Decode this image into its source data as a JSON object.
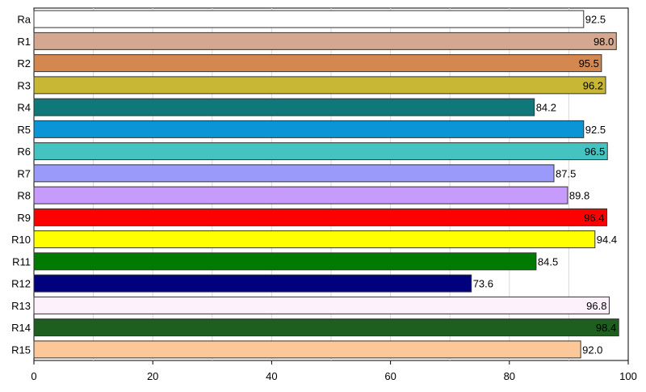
{
  "chart_data": {
    "type": "bar",
    "orientation": "horizontal",
    "categories": [
      "Ra",
      "R1",
      "R2",
      "R3",
      "R4",
      "R5",
      "R6",
      "R7",
      "R8",
      "R9",
      "R10",
      "R11",
      "R12",
      "R13",
      "R14",
      "R15"
    ],
    "values": [
      92.5,
      98.0,
      95.5,
      96.2,
      84.2,
      92.5,
      96.5,
      87.5,
      89.8,
      96.4,
      94.4,
      84.5,
      73.6,
      96.8,
      98.4,
      92.0
    ],
    "value_labels": [
      "92.5",
      "98.0",
      "95.5",
      "96.2",
      "84.2",
      "92.5",
      "96.5",
      "87.5",
      "89.8",
      "96.4",
      "94.4",
      "84.5",
      "73.6",
      "96.8",
      "98.4",
      "92.0"
    ],
    "label_inside": [
      false,
      true,
      true,
      true,
      false,
      false,
      true,
      false,
      false,
      true,
      false,
      false,
      false,
      true,
      true,
      false
    ],
    "colors": [
      "#ffffff",
      "#d4a890",
      "#d4874f",
      "#c8b635",
      "#107878",
      "#0b95d6",
      "#44c3c0",
      "#9a9afb",
      "#c79bfb",
      "#ff0000",
      "#ffff00",
      "#007a00",
      "#00007f",
      "#fdf1fb",
      "#1e5e1e",
      "#fdc899"
    ],
    "xlim": [
      0,
      100
    ],
    "x_ticks": [
      0,
      20,
      40,
      60,
      80,
      100
    ],
    "x_tick_labels": [
      "0",
      "20",
      "40",
      "60",
      "80",
      "100"
    ],
    "grid": "vertical",
    "title": "",
    "xlabel": "",
    "ylabel": ""
  }
}
